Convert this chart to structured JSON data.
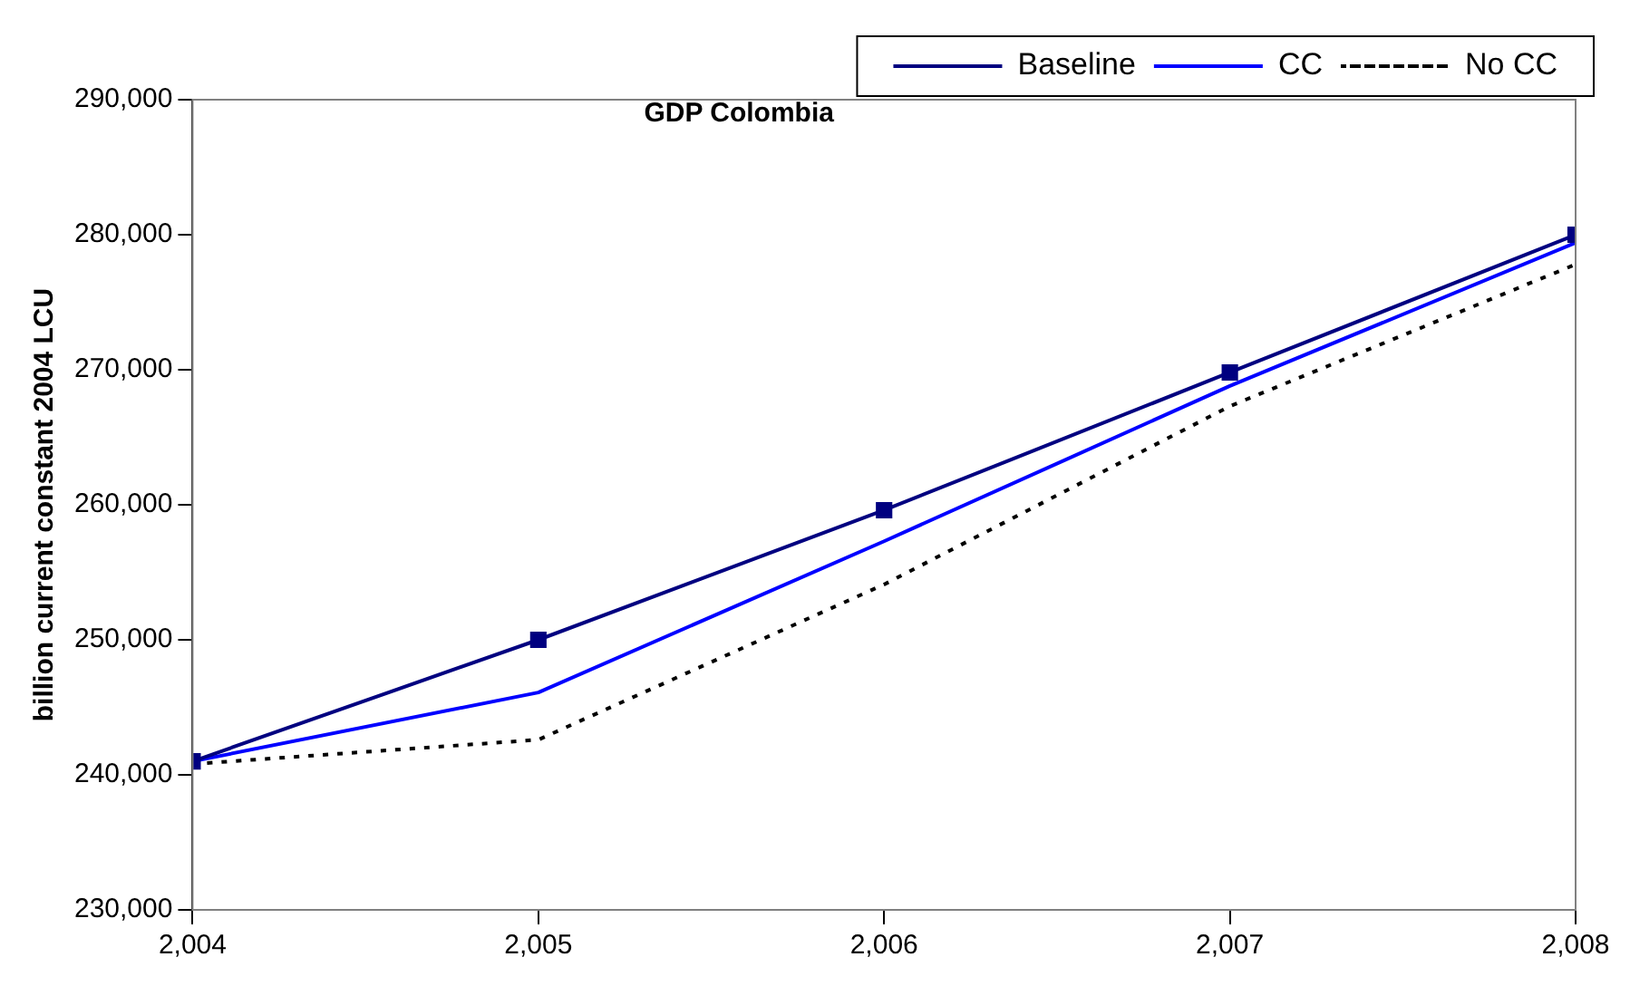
{
  "chart_data": {
    "type": "line",
    "title": "GDP Colombia",
    "ylabel": "billion current constant 2004 LCU",
    "x": [
      2004,
      2005,
      2006,
      2007,
      2008
    ],
    "xlim": [
      2004,
      2008
    ],
    "xticks": [
      {
        "value": 2004,
        "label": "2,004"
      },
      {
        "value": 2005,
        "label": "2,005"
      },
      {
        "value": 2006,
        "label": "2,006"
      },
      {
        "value": 2007,
        "label": "2,007"
      },
      {
        "value": 2008,
        "label": "2,008"
      }
    ],
    "ylim": [
      230000,
      290000
    ],
    "yticks": [
      {
        "value": 230000,
        "label": "230,000"
      },
      {
        "value": 240000,
        "label": "240,000"
      },
      {
        "value": 250000,
        "label": "250,000"
      },
      {
        "value": 260000,
        "label": "260,000"
      },
      {
        "value": 270000,
        "label": "270,000"
      },
      {
        "value": 280000,
        "label": "280,000"
      },
      {
        "value": 290000,
        "label": "290,000"
      }
    ],
    "series": [
      {
        "name": "Baseline",
        "color": "#000080",
        "values": [
          241000,
          250000,
          259600,
          269800,
          280000
        ],
        "marker": "square",
        "line_style": "solid"
      },
      {
        "name": "CC",
        "color": "#0000ff",
        "values": [
          241000,
          246100,
          257300,
          268800,
          279400
        ],
        "marker": "none",
        "line_style": "solid"
      },
      {
        "name": "No CC",
        "color": "#000000",
        "values": [
          240800,
          242600,
          254100,
          267300,
          277800
        ],
        "marker": "none",
        "line_style": "dotted"
      }
    ],
    "grid": false,
    "legend": "top right"
  }
}
